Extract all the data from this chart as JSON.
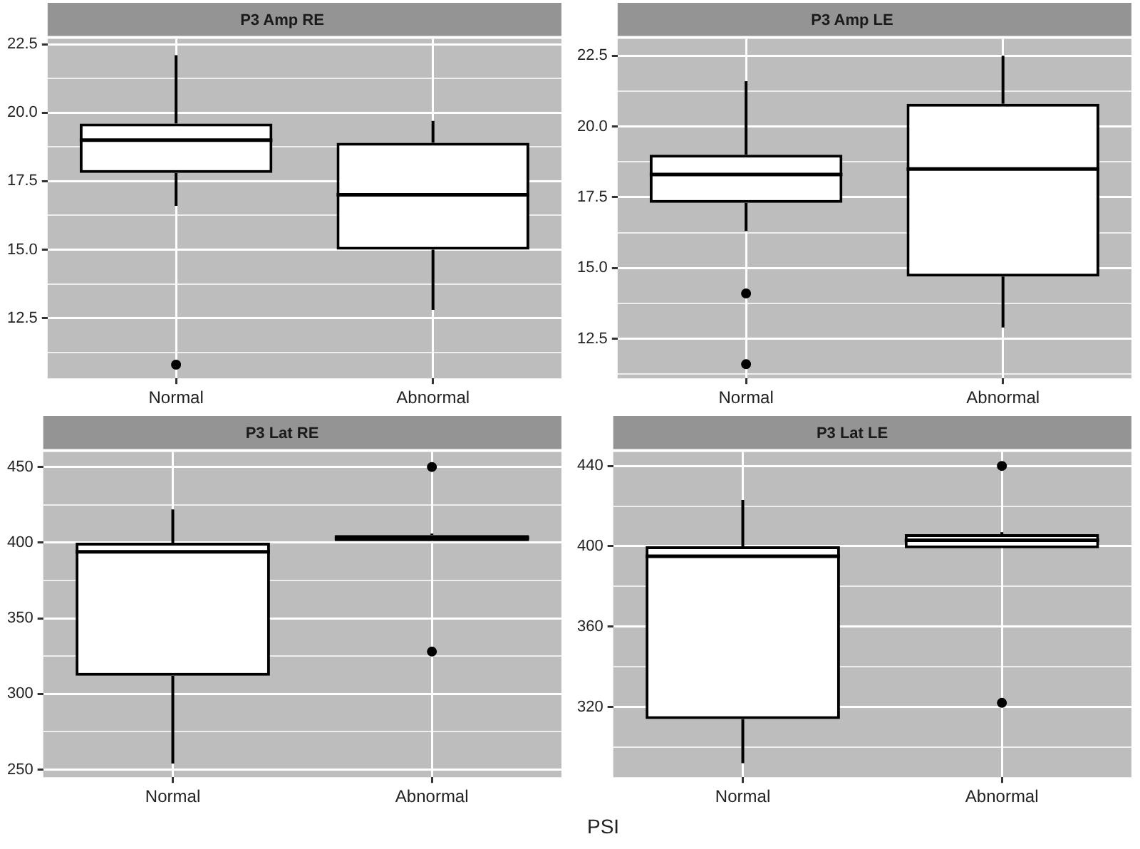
{
  "chart_data": [
    {
      "type": "box",
      "title": "P3 Amp RE",
      "categories": [
        "Normal",
        "Abnormal"
      ],
      "boxes": [
        {
          "low": 16.6,
          "q1": 17.8,
          "median": 19.0,
          "q3": 19.6,
          "high": 22.1,
          "outliers": [
            10.8
          ]
        },
        {
          "low": 12.8,
          "q1": 15.0,
          "median": 17.0,
          "q3": 18.9,
          "high": 19.7
        }
      ],
      "ylim": [
        10.3,
        22.7
      ],
      "yticks": [
        {
          "value": 11.25,
          "label": null
        },
        12.5,
        {
          "value": 13.75,
          "label": null
        },
        {
          "value": 15,
          "label": "15.0"
        },
        {
          "value": 16.25,
          "label": null
        },
        17.5,
        {
          "value": 18.75,
          "label": null
        },
        {
          "value": 20,
          "label": "20.0"
        },
        {
          "value": 21.25,
          "label": null
        },
        22.5
      ],
      "grid": true
    },
    {
      "type": "box",
      "title": "P3 Amp LE",
      "categories": [
        "Normal",
        "Abnormal"
      ],
      "boxes": [
        {
          "low": 16.3,
          "q1": 17.3,
          "median": 18.3,
          "q3": 19.0,
          "high": 21.6,
          "outliers": [
            14.1,
            11.6
          ]
        },
        {
          "low": 12.9,
          "q1": 14.7,
          "median": 18.5,
          "q3": 20.8,
          "high": 22.5
        }
      ],
      "ylim": [
        11.1,
        23.1
      ],
      "yticks": [
        {
          "value": 11.25,
          "label": null
        },
        12.5,
        {
          "value": 13.75,
          "label": null
        },
        {
          "value": 15,
          "label": "15.0"
        },
        {
          "value": 16.25,
          "label": null
        },
        17.5,
        {
          "value": 18.75,
          "label": null
        },
        {
          "value": 20,
          "label": "20.0"
        },
        {
          "value": 21.25,
          "label": null
        },
        22.5
      ],
      "grid": true
    },
    {
      "type": "box",
      "title": "P3 Lat RE",
      "categories": [
        "Normal",
        "Abnormal"
      ],
      "boxes": [
        {
          "low": 254,
          "q1": 312,
          "median": 394,
          "q3": 400,
          "high": 422
        },
        {
          "low": 401,
          "q1": 401,
          "median": 403,
          "q3": 405,
          "high": 406,
          "outliers": [
            450,
            328
          ]
        }
      ],
      "ylim": [
        245,
        460
      ],
      "yticks": [
        250,
        {
          "value": 275,
          "label": null
        },
        300,
        {
          "value": 325,
          "label": null
        },
        350,
        {
          "value": 375,
          "label": null
        },
        400,
        {
          "value": 425,
          "label": null
        },
        450
      ],
      "grid": true
    },
    {
      "type": "box",
      "title": "P3 Lat LE",
      "xlabel": "PSI",
      "categories": [
        "Normal",
        "Abnormal"
      ],
      "boxes": [
        {
          "low": 292,
          "q1": 314,
          "median": 395,
          "q3": 400,
          "high": 423
        },
        {
          "low": 399,
          "q1": 399,
          "median": 403,
          "q3": 406,
          "high": 407,
          "outliers": [
            440,
            322
          ]
        }
      ],
      "ylim": [
        285,
        447
      ],
      "yticks": [
        {
          "value": 300,
          "label": null
        },
        320,
        {
          "value": 340,
          "label": null
        },
        360,
        {
          "value": 380,
          "label": null
        },
        400,
        {
          "value": 420,
          "label": null
        },
        440
      ],
      "grid": true
    }
  ]
}
